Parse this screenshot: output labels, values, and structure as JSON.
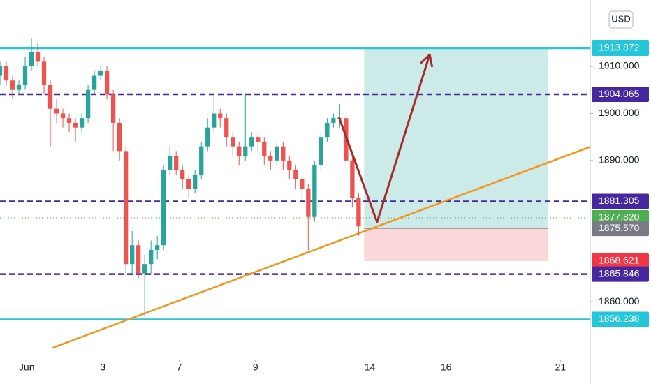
{
  "chart_data": {
    "type": "candlestick",
    "x": [
      -0.7,
      -0.535,
      -0.37,
      -0.205,
      -0.04,
      0.125,
      0.29,
      0.455,
      0.62,
      0.785,
      0.95,
      1.115,
      1.28,
      1.445,
      1.61,
      1.775,
      1.94,
      2.105,
      2.27,
      2.435,
      2.6,
      2.765,
      2.93,
      3.095,
      3.26,
      3.425,
      3.59,
      3.755,
      3.92,
      4.085,
      4.25,
      4.415,
      4.58,
      4.745,
      4.91,
      5.075,
      5.24,
      5.405,
      5.57,
      5.735,
      5.9,
      6.065,
      6.23,
      6.395,
      6.56,
      6.725,
      6.89,
      7.055,
      7.22,
      7.385,
      7.55,
      7.715,
      7.88,
      8.045,
      8.21,
      8.375,
      8.54,
      8.705
    ],
    "open": [
      1908,
      1910,
      1907,
      1905,
      1906,
      1910,
      1913,
      1911,
      1906,
      1901,
      1900,
      1899,
      1898,
      1897,
      1899,
      1905,
      1908,
      1909,
      1904,
      1898,
      1892,
      1868,
      1872,
      1866,
      1868,
      1871,
      1872,
      1888,
      1891,
      1888,
      1886,
      1884,
      1887,
      1893,
      1897,
      1900,
      1899,
      1895,
      1893,
      1891,
      1893,
      1895,
      1894,
      1891,
      1890,
      1893,
      1890,
      1888,
      1886,
      1884,
      1878,
      1889,
      1895,
      1898,
      1899,
      1899,
      1890,
      1882
    ],
    "high": [
      1911,
      1911,
      1908,
      1907,
      1912,
      1916,
      1915,
      1912,
      1907,
      1903,
      1901,
      1900,
      1899,
      1900,
      1906,
      1909,
      1910,
      1910,
      1905,
      1899,
      1893,
      1875,
      1873,
      1870,
      1873,
      1874,
      1889,
      1893,
      1892,
      1889,
      1887,
      1888,
      1894,
      1899,
      1904,
      1901,
      1900,
      1896,
      1894,
      1904,
      1896,
      1896,
      1895,
      1892,
      1894,
      1894,
      1891,
      1889,
      1887,
      1885,
      1890,
      1896,
      1899,
      1900,
      1902,
      1900,
      1891,
      1883
    ],
    "low": [
      1906,
      1906,
      1903,
      1904,
      1905,
      1909,
      1910,
      1904,
      1893,
      1898,
      1897,
      1896,
      1894,
      1896,
      1898,
      1904,
      1907,
      1903,
      1892,
      1890,
      1866,
      1866,
      1865,
      1857,
      1866,
      1869,
      1871,
      1887,
      1887,
      1884,
      1882,
      1883,
      1886,
      1892,
      1896,
      1897,
      1893,
      1891,
      1889,
      1890,
      1892,
      1892,
      1889,
      1888,
      1889,
      1888,
      1886,
      1884,
      1882,
      1871,
      1877,
      1888,
      1894,
      1897,
      1897,
      1888,
      1880,
      1874
    ],
    "close": [
      1910,
      1907,
      1905,
      1906,
      1910,
      1913,
      1911,
      1906,
      1901,
      1900,
      1899,
      1898,
      1897,
      1899,
      1905,
      1908,
      1909,
      1904,
      1898,
      1892,
      1868,
      1872,
      1866,
      1868,
      1871,
      1872,
      1888,
      1891,
      1888,
      1886,
      1884,
      1887,
      1893,
      1897,
      1900,
      1899,
      1895,
      1893,
      1891,
      1893,
      1895,
      1894,
      1891,
      1890,
      1893,
      1890,
      1888,
      1886,
      1884,
      1878,
      1889,
      1895,
      1898,
      1899,
      1899,
      1890,
      1882,
      1876
    ],
    "up_color": "#26a69a",
    "down_color": "#ef5350",
    "xlim": [
      -0.7,
      14.78
    ],
    "ylim": [
      1847.7,
      1924.1
    ],
    "xticks": [
      {
        "value": 0,
        "label": "Jun"
      },
      {
        "value": 2,
        "label": "3"
      },
      {
        "value": 4,
        "label": "7"
      },
      {
        "value": 6,
        "label": "9"
      },
      {
        "value": 9,
        "label": "14"
      },
      {
        "value": 11,
        "label": "16"
      },
      {
        "value": 14,
        "label": "21"
      }
    ],
    "yticks": [
      {
        "value": 1860,
        "label": "1860.000"
      },
      {
        "value": 1890,
        "label": "1890.000"
      },
      {
        "value": 1900,
        "label": "1900.000"
      },
      {
        "value": 1910,
        "label": "1910.000"
      }
    ],
    "levels": [
      {
        "value": 1913.872,
        "label": "1913.872",
        "color": "#26c6da",
        "style": "solid"
      },
      {
        "value": 1904.065,
        "label": "1904.065",
        "color": "#4527a0",
        "style": "dashed"
      },
      {
        "value": 1881.305,
        "label": "1881.305",
        "color": "#4527a0",
        "style": "dashed"
      },
      {
        "value": 1877.82,
        "label": "1877.820",
        "color": "#4caf50",
        "style": "dotted"
      },
      {
        "value": 1875.57,
        "label": "1875.570",
        "color": "#787b86",
        "style": "none"
      },
      {
        "value": 1868.621,
        "label": "1868.621",
        "color": "#f23645",
        "style": "none"
      },
      {
        "value": 1865.846,
        "label": "1865.846",
        "color": "#4527a0",
        "style": "dashed"
      },
      {
        "value": 1856.238,
        "label": "1856.238",
        "color": "#26c6da",
        "style": "solid"
      }
    ],
    "position": {
      "x": [
        8.85,
        13.68
      ],
      "target": 1913.872,
      "entry": 1875.57,
      "stop": 1868.621
    },
    "trendline": {
      "x": [
        0.68,
        14.78
      ],
      "y": [
        1850.2,
        1892.9
      ],
      "color": "#f7931a"
    },
    "projection": {
      "x": [
        8.19,
        9.19,
        10.57
      ],
      "y": [
        1899.2,
        1876.9,
        1912.5
      ],
      "color": "#a52a2a"
    },
    "currency": "USD"
  }
}
